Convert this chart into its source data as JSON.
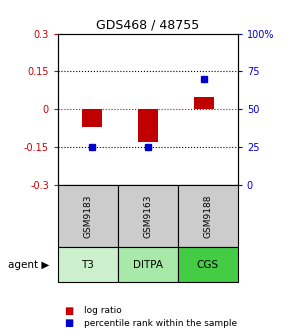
{
  "title": "GDS468 / 48755",
  "samples": [
    "GSM9183",
    "GSM9163",
    "GSM9188"
  ],
  "agents": [
    "T3",
    "DITPA",
    "CGS"
  ],
  "log_ratios": [
    -0.07,
    -0.13,
    0.05
  ],
  "percentile_ranks": [
    25,
    25,
    70
  ],
  "ylim_left": [
    -0.3,
    0.3
  ],
  "ylim_right": [
    0,
    100
  ],
  "yticks_left": [
    -0.3,
    -0.15,
    0,
    0.15,
    0.3
  ],
  "yticks_right": [
    0,
    25,
    50,
    75,
    100
  ],
  "ytick_labels_left": [
    "-0.3",
    "-0.15",
    "0",
    "0.15",
    "0.3"
  ],
  "ytick_labels_right": [
    "0",
    "25",
    "50",
    "75",
    "100%"
  ],
  "bar_color": "#c00000",
  "dot_color": "#0000cc",
  "agent_colors": [
    "#ccf0cc",
    "#a8e8a8",
    "#44cc44"
  ],
  "sample_bg_color": "#cccccc",
  "legend_bar_color": "#cc0000",
  "legend_dot_color": "#0000cc",
  "bar_width": 0.35
}
